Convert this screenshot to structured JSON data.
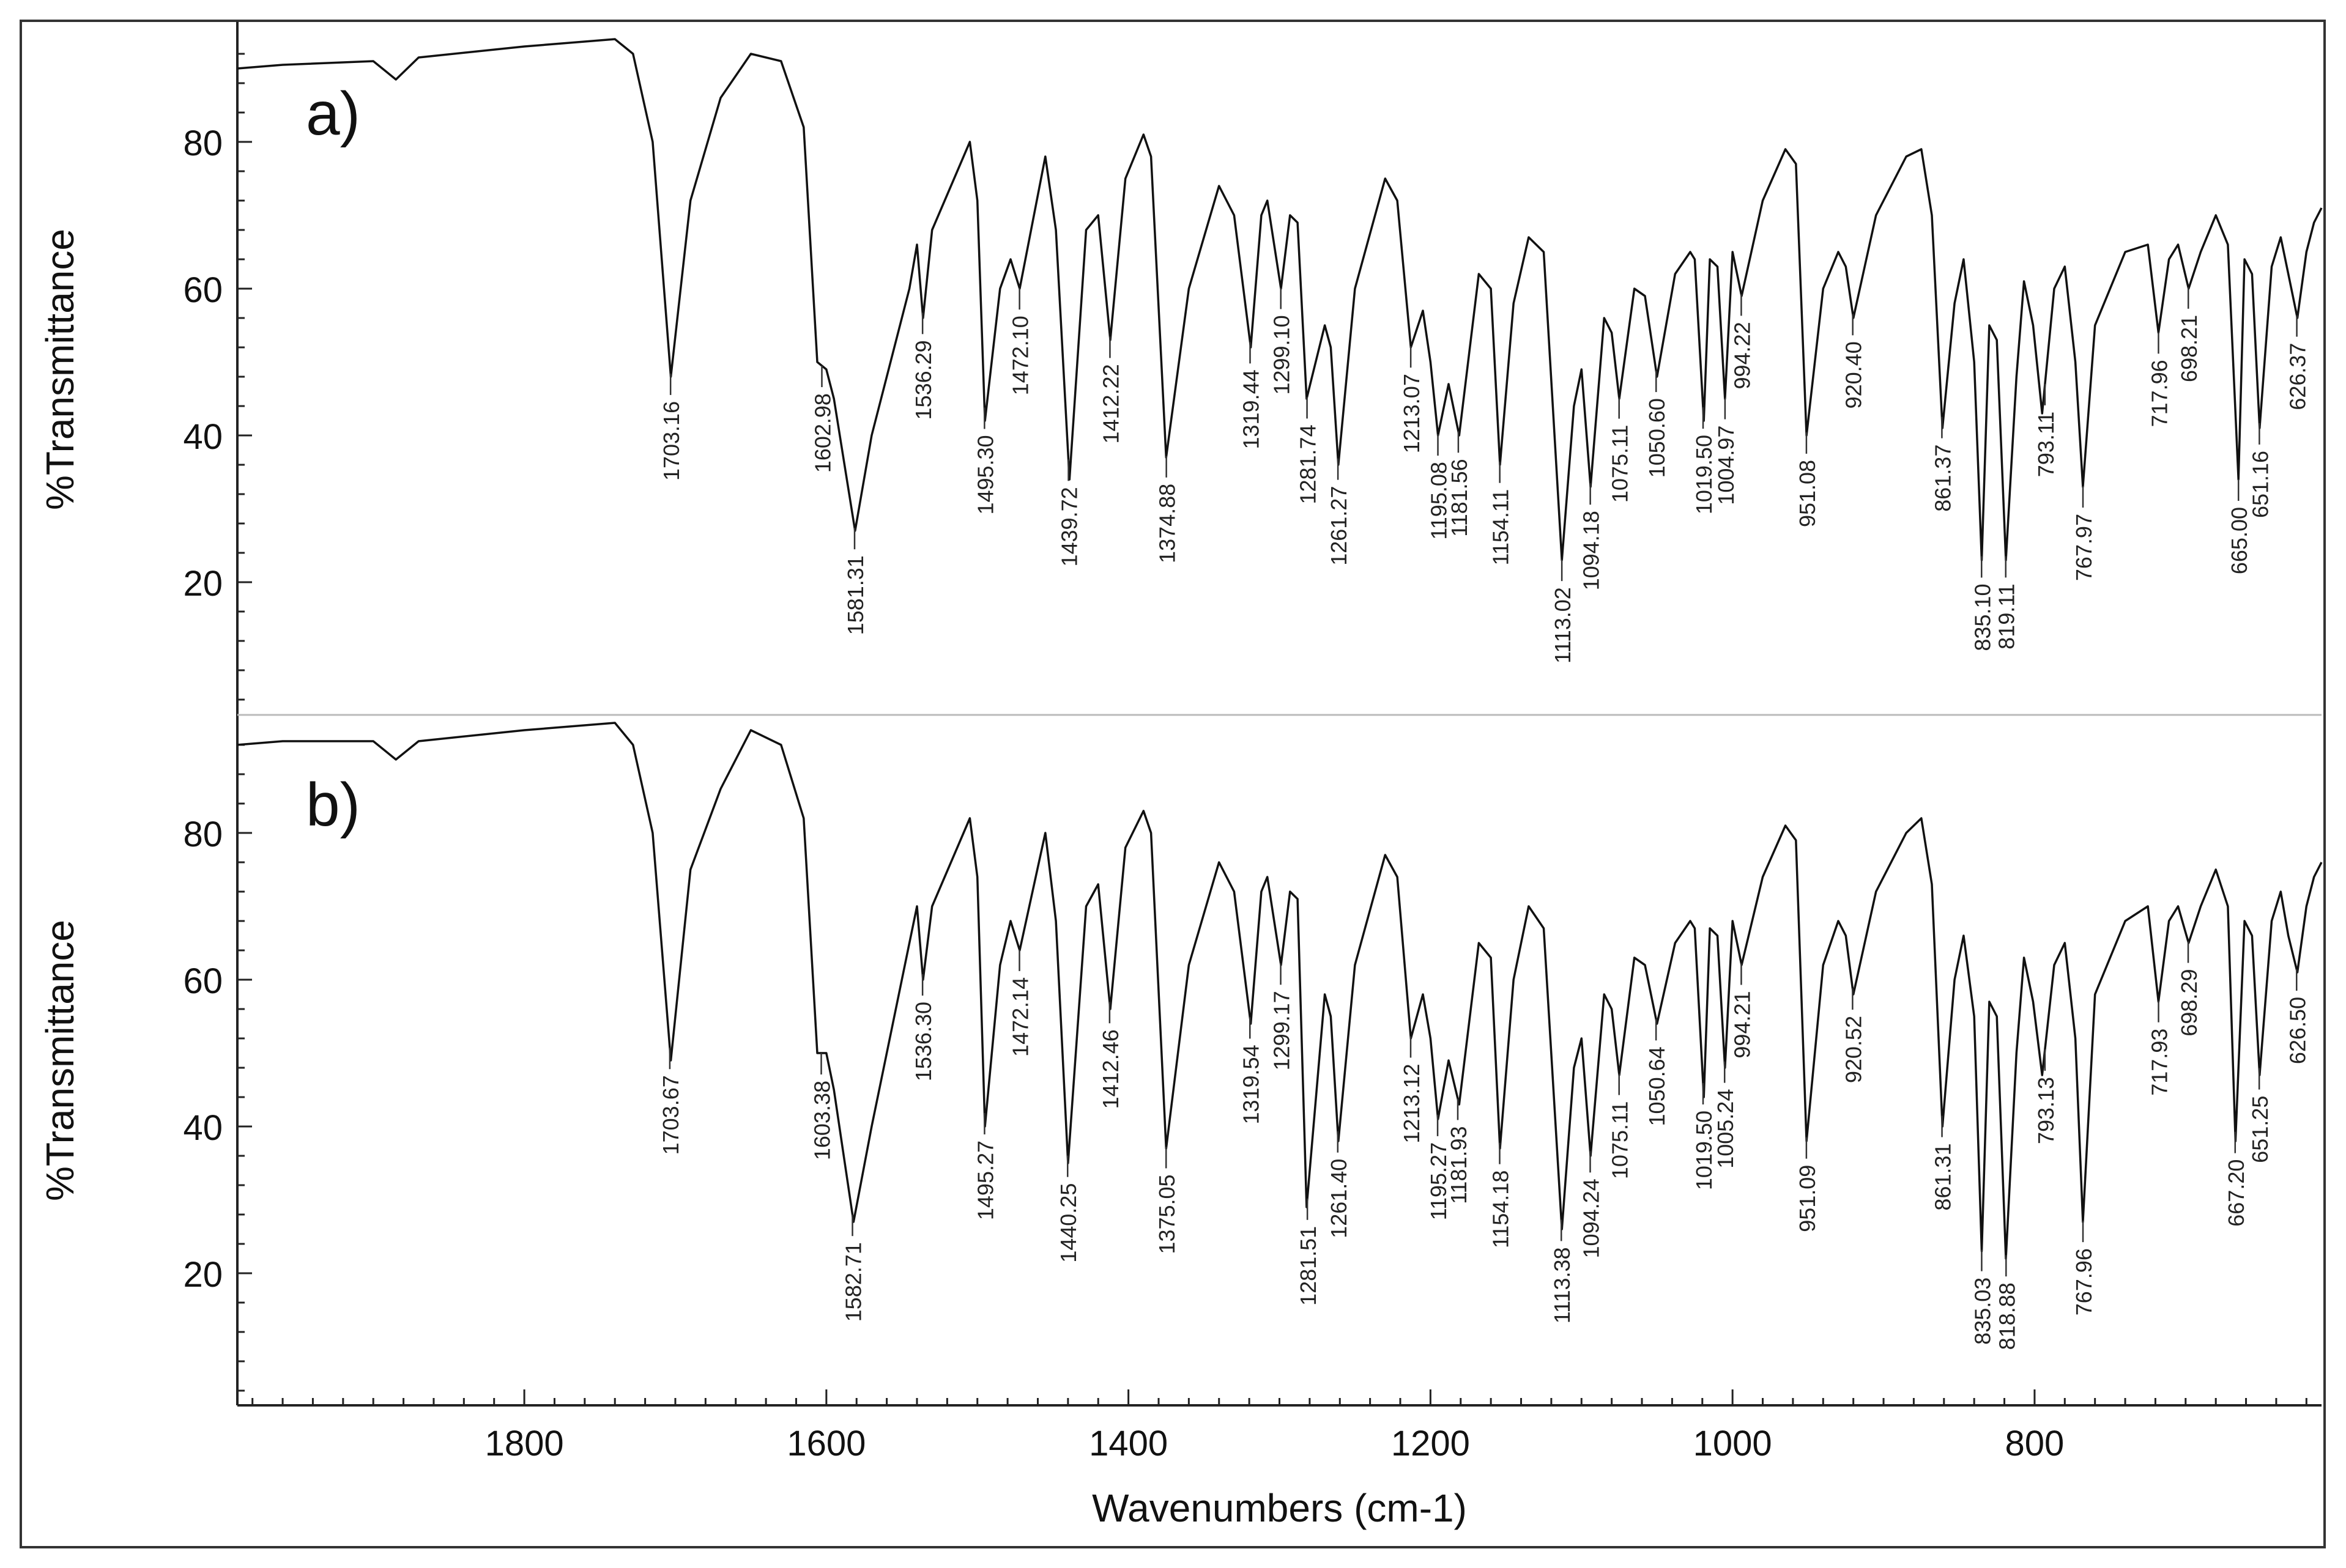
{
  "chart_data": {
    "type": "line",
    "xlabel": "Wavenumbers (cm-1)",
    "xlim": [
      1990,
      610
    ],
    "xticks": [
      1800,
      1600,
      1400,
      1200,
      1000,
      800
    ],
    "xtick_labels": [
      "1800",
      "1600",
      "1400",
      "1200",
      "1000",
      "800"
    ],
    "panels": [
      {
        "label": "a)",
        "ylabel": "%Transmittance",
        "ylim": [
          2,
          96
        ],
        "yticks": [
          20,
          40,
          60,
          80
        ],
        "ytick_labels": [
          "20",
          "40",
          "60",
          "80"
        ],
        "baseline": [
          [
            1990,
            90
          ],
          [
            1960,
            90.5
          ],
          [
            1900,
            91
          ],
          [
            1885,
            88.5
          ],
          [
            1870,
            91.5
          ],
          [
            1800,
            93
          ],
          [
            1740,
            94
          ],
          [
            1728,
            92
          ],
          [
            1715,
            80
          ],
          [
            1703,
            48
          ],
          [
            1690,
            72
          ],
          [
            1670,
            86
          ],
          [
            1650,
            92
          ],
          [
            1630,
            91
          ],
          [
            1615,
            82
          ],
          [
            1606,
            50
          ],
          [
            1600,
            49
          ],
          [
            1595,
            45
          ],
          [
            1581,
            27
          ],
          [
            1570,
            40
          ],
          [
            1545,
            60
          ],
          [
            1540,
            66
          ],
          [
            1536,
            56
          ],
          [
            1530,
            68
          ],
          [
            1505,
            80
          ],
          [
            1500,
            72
          ],
          [
            1495,
            42
          ],
          [
            1485,
            60
          ],
          [
            1478,
            64
          ],
          [
            1472,
            60
          ],
          [
            1455,
            78
          ],
          [
            1448,
            68
          ],
          [
            1439,
            34
          ],
          [
            1428,
            68
          ],
          [
            1420,
            70
          ],
          [
            1412,
            53
          ],
          [
            1402,
            75
          ],
          [
            1390,
            81
          ],
          [
            1385,
            78
          ],
          [
            1375,
            37
          ],
          [
            1360,
            60
          ],
          [
            1340,
            74
          ],
          [
            1330,
            70
          ],
          [
            1319,
            52
          ],
          [
            1312,
            70
          ],
          [
            1308,
            72
          ],
          [
            1299,
            60
          ],
          [
            1293,
            70
          ],
          [
            1288,
            69
          ],
          [
            1282,
            45
          ],
          [
            1270,
            55
          ],
          [
            1266,
            52
          ],
          [
            1261,
            36
          ],
          [
            1250,
            60
          ],
          [
            1230,
            75
          ],
          [
            1222,
            72
          ],
          [
            1213,
            52
          ],
          [
            1205,
            57
          ],
          [
            1200,
            50
          ],
          [
            1195,
            40
          ],
          [
            1188,
            47
          ],
          [
            1181,
            40
          ],
          [
            1168,
            62
          ],
          [
            1160,
            60
          ],
          [
            1154,
            36
          ],
          [
            1145,
            58
          ],
          [
            1135,
            67
          ],
          [
            1125,
            65
          ],
          [
            1113,
            23
          ],
          [
            1105,
            44
          ],
          [
            1100,
            49
          ],
          [
            1094,
            33
          ],
          [
            1085,
            56
          ],
          [
            1080,
            54
          ],
          [
            1075,
            45
          ],
          [
            1065,
            60
          ],
          [
            1058,
            59
          ],
          [
            1050,
            48
          ],
          [
            1038,
            62
          ],
          [
            1028,
            65
          ],
          [
            1025,
            64
          ],
          [
            1019,
            42
          ],
          [
            1015,
            64
          ],
          [
            1010,
            63
          ],
          [
            1005,
            45
          ],
          [
            1000,
            65
          ],
          [
            997,
            62
          ],
          [
            994,
            59
          ],
          [
            980,
            72
          ],
          [
            965,
            79
          ],
          [
            958,
            77
          ],
          [
            951,
            40
          ],
          [
            940,
            60
          ],
          [
            930,
            65
          ],
          [
            925,
            63
          ],
          [
            920,
            56
          ],
          [
            905,
            70
          ],
          [
            885,
            78
          ],
          [
            875,
            79
          ],
          [
            868,
            70
          ],
          [
            861,
            41
          ],
          [
            853,
            58
          ],
          [
            847,
            64
          ],
          [
            840,
            50
          ],
          [
            835,
            23
          ],
          [
            830,
            55
          ],
          [
            825,
            53
          ],
          [
            819,
            23
          ],
          [
            812,
            48
          ],
          [
            807,
            61
          ],
          [
            801,
            55
          ],
          [
            795,
            43
          ],
          [
            787,
            60
          ],
          [
            780,
            63
          ],
          [
            773,
            50
          ],
          [
            768,
            33
          ],
          [
            760,
            55
          ],
          [
            740,
            65
          ],
          [
            725,
            66
          ],
          [
            718,
            54
          ],
          [
            711,
            64
          ],
          [
            705,
            66
          ],
          [
            698,
            60
          ],
          [
            690,
            65
          ],
          [
            680,
            70
          ],
          [
            672,
            66
          ],
          [
            665,
            34
          ],
          [
            661,
            64
          ],
          [
            656,
            62
          ],
          [
            651,
            41
          ],
          [
            643,
            63
          ],
          [
            637,
            67
          ],
          [
            632,
            62
          ],
          [
            626,
            56
          ],
          [
            620,
            65
          ],
          [
            615,
            69
          ],
          [
            610,
            71
          ]
        ],
        "peaks": [
          "1703.16",
          "1602.98",
          "1581.31",
          "1536.29",
          "1495.30",
          "1472.10",
          "1439.72",
          "1412.22",
          "1374.88",
          "1319.44",
          "1299.10",
          "1281.74",
          "1261.27",
          "1213.07",
          "1195.08",
          "1181.56",
          "1154.11",
          "1113.02",
          "1094.18",
          "1075.11",
          "1050.60",
          "1019.50",
          "1004.97",
          "994.22",
          "951.08",
          "920.40",
          "861.37",
          "835.10",
          "819.11",
          "793.11",
          "767.97",
          "717.96",
          "698.21",
          "665.00",
          "651.16",
          "626.37"
        ]
      },
      {
        "label": "b)",
        "ylabel": "%Transmittance",
        "ylim": [
          2,
          96
        ],
        "yticks": [
          20,
          40,
          60,
          80
        ],
        "ytick_labels": [
          "20",
          "40",
          "60",
          "80"
        ],
        "baseline": [
          [
            1990,
            92
          ],
          [
            1960,
            92.5
          ],
          [
            1900,
            92.5
          ],
          [
            1885,
            90
          ],
          [
            1870,
            92.5
          ],
          [
            1800,
            94
          ],
          [
            1740,
            95
          ],
          [
            1728,
            92
          ],
          [
            1715,
            80
          ],
          [
            1703,
            49
          ],
          [
            1690,
            75
          ],
          [
            1670,
            86
          ],
          [
            1650,
            94
          ],
          [
            1630,
            92
          ],
          [
            1615,
            82
          ],
          [
            1606,
            50
          ],
          [
            1600,
            50
          ],
          [
            1595,
            45
          ],
          [
            1582,
            27
          ],
          [
            1570,
            40
          ],
          [
            1545,
            65
          ],
          [
            1540,
            70
          ],
          [
            1536,
            60
          ],
          [
            1530,
            70
          ],
          [
            1505,
            82
          ],
          [
            1500,
            74
          ],
          [
            1495,
            40
          ],
          [
            1485,
            62
          ],
          [
            1478,
            68
          ],
          [
            1472,
            64
          ],
          [
            1455,
            80
          ],
          [
            1448,
            68
          ],
          [
            1440,
            35
          ],
          [
            1428,
            70
          ],
          [
            1420,
            73
          ],
          [
            1412,
            56
          ],
          [
            1402,
            78
          ],
          [
            1390,
            83
          ],
          [
            1385,
            80
          ],
          [
            1375,
            37
          ],
          [
            1360,
            62
          ],
          [
            1340,
            76
          ],
          [
            1330,
            72
          ],
          [
            1319,
            54
          ],
          [
            1312,
            72
          ],
          [
            1308,
            74
          ],
          [
            1299,
            62
          ],
          [
            1293,
            72
          ],
          [
            1288,
            71
          ],
          [
            1282,
            29
          ],
          [
            1270,
            58
          ],
          [
            1266,
            55
          ],
          [
            1261,
            38
          ],
          [
            1250,
            62
          ],
          [
            1230,
            77
          ],
          [
            1222,
            74
          ],
          [
            1213,
            52
          ],
          [
            1205,
            58
          ],
          [
            1200,
            52
          ],
          [
            1195,
            41
          ],
          [
            1188,
            49
          ],
          [
            1181,
            43
          ],
          [
            1168,
            65
          ],
          [
            1160,
            63
          ],
          [
            1154,
            37
          ],
          [
            1145,
            60
          ],
          [
            1135,
            70
          ],
          [
            1125,
            67
          ],
          [
            1113,
            26
          ],
          [
            1105,
            48
          ],
          [
            1100,
            52
          ],
          [
            1094,
            36
          ],
          [
            1085,
            58
          ],
          [
            1080,
            56
          ],
          [
            1075,
            47
          ],
          [
            1065,
            63
          ],
          [
            1058,
            62
          ],
          [
            1050,
            54
          ],
          [
            1038,
            65
          ],
          [
            1028,
            68
          ],
          [
            1025,
            67
          ],
          [
            1019,
            44
          ],
          [
            1015,
            67
          ],
          [
            1010,
            66
          ],
          [
            1005,
            48
          ],
          [
            1000,
            68
          ],
          [
            997,
            65
          ],
          [
            994,
            62
          ],
          [
            980,
            74
          ],
          [
            965,
            81
          ],
          [
            958,
            79
          ],
          [
            951,
            38
          ],
          [
            940,
            62
          ],
          [
            930,
            68
          ],
          [
            925,
            66
          ],
          [
            920,
            58
          ],
          [
            905,
            72
          ],
          [
            885,
            80
          ],
          [
            875,
            82
          ],
          [
            868,
            73
          ],
          [
            861,
            40
          ],
          [
            853,
            60
          ],
          [
            847,
            66
          ],
          [
            840,
            55
          ],
          [
            835,
            23
          ],
          [
            830,
            57
          ],
          [
            825,
            55
          ],
          [
            819,
            22
          ],
          [
            812,
            50
          ],
          [
            807,
            63
          ],
          [
            801,
            57
          ],
          [
            795,
            47
          ],
          [
            787,
            62
          ],
          [
            780,
            65
          ],
          [
            773,
            52
          ],
          [
            768,
            27
          ],
          [
            760,
            58
          ],
          [
            740,
            68
          ],
          [
            725,
            70
          ],
          [
            718,
            57
          ],
          [
            711,
            68
          ],
          [
            705,
            70
          ],
          [
            698,
            65
          ],
          [
            690,
            70
          ],
          [
            680,
            75
          ],
          [
            672,
            70
          ],
          [
            667,
            38
          ],
          [
            661,
            68
          ],
          [
            656,
            66
          ],
          [
            651,
            47
          ],
          [
            643,
            68
          ],
          [
            637,
            72
          ],
          [
            632,
            66
          ],
          [
            626,
            61
          ],
          [
            620,
            70
          ],
          [
            615,
            74
          ],
          [
            610,
            76
          ]
        ],
        "peaks": [
          "1703.67",
          "1603.38",
          "1582.71",
          "1536.30",
          "1495.27",
          "1472.14",
          "1440.25",
          "1412.46",
          "1375.05",
          "1319.54",
          "1299.17",
          "1281.51",
          "1261.40",
          "1213.12",
          "1195.27",
          "1181.93",
          "1154.18",
          "1113.38",
          "1094.24",
          "1075.11",
          "1050.64",
          "1019.50",
          "1005.24",
          "994.21",
          "951.09",
          "920.52",
          "861.31",
          "835.03",
          "818.88",
          "793.13",
          "767.96",
          "717.93",
          "698.29",
          "667.20",
          "651.25",
          "626.50"
        ]
      }
    ]
  }
}
